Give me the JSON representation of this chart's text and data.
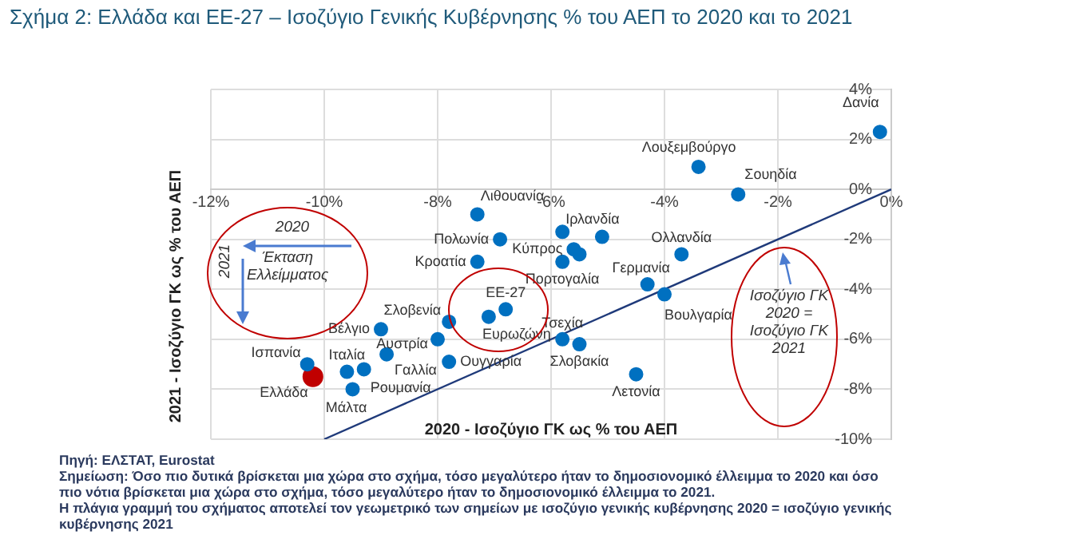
{
  "chart_data": {
    "type": "scatter",
    "title": "Σχήμα 2: Ελλάδα και ΕΕ-27 – Ισοζύγιο Γενικής Κυβέρνησης % του ΑΕΠ το 2020 και το 2021",
    "xlabel": "2020 - Ισοζύγιο ΓΚ ως % του ΑΕΠ",
    "ylabel": "2021 - Ισοζύγιο ΓΚ ως % του ΑΕΠ",
    "xlim": [
      -12,
      0
    ],
    "ylim": [
      -10,
      4
    ],
    "xticks": [
      {
        "value": -12,
        "label": "-12%"
      },
      {
        "value": -10,
        "label": "-10%"
      },
      {
        "value": -8,
        "label": "-8%"
      },
      {
        "value": -6,
        "label": "-6%"
      },
      {
        "value": -4,
        "label": "-4%"
      },
      {
        "value": -2,
        "label": "-2%"
      },
      {
        "value": 0,
        "label": "0%"
      }
    ],
    "yticks": [
      {
        "value": -10,
        "label": "-10%"
      },
      {
        "value": -8,
        "label": "-8%"
      },
      {
        "value": -6,
        "label": "-6%"
      },
      {
        "value": -4,
        "label": "-4%"
      },
      {
        "value": -2,
        "label": "-2%"
      },
      {
        "value": 0,
        "label": "0%"
      },
      {
        "value": 2,
        "label": "2%"
      },
      {
        "value": 4,
        "label": "4%"
      }
    ],
    "grid": true,
    "legend": false,
    "marker": "circle",
    "series": [
      {
        "type": "scatter",
        "color": "#0070c0",
        "x": [
          -0.2,
          -3.4,
          -2.7,
          -7.3,
          -6.9,
          -5.8,
          -5.1,
          -5.6,
          -5.5,
          -5.8,
          -7.3,
          -3.7,
          -4.3,
          -4.0,
          -6.8,
          -7.1,
          -7.8,
          -8.0,
          -9.0,
          -5.8,
          -5.5,
          -7.8,
          -4.5,
          -9.6,
          -9.3,
          -8.9,
          -9.5,
          -10.3
        ],
        "values": [
          2.3,
          0.9,
          -0.2,
          -1.0,
          -2.0,
          -1.7,
          -1.9,
          -2.4,
          -2.6,
          -2.9,
          -2.9,
          -2.6,
          -3.8,
          -4.2,
          -4.8,
          -5.1,
          -5.3,
          -6.0,
          -5.6,
          -6.0,
          -6.2,
          -6.9,
          -7.4,
          -7.3,
          -7.2,
          -6.6,
          -8.0,
          -7.0
        ]
      },
      {
        "type": "scatter",
        "color": "#c00000",
        "x": [
          -10.2
        ],
        "values": [
          -7.5
        ]
      },
      {
        "type": "line",
        "color": "#1f3a7a",
        "marker": "none",
        "x": [
          -10,
          0
        ],
        "values": [
          -10,
          0
        ]
      }
    ],
    "annotations": [
      {
        "text": "Δανία",
        "x": -0.2,
        "y": 2.3
      },
      {
        "text": "Λουξεμβούργο",
        "x": -3.4,
        "y": 0.9
      },
      {
        "text": "Σουηδία",
        "x": -2.7,
        "y": -0.2
      },
      {
        "text": "Λιθουανία",
        "x": -7.3,
        "y": -1.0
      },
      {
        "text": "Πολωνία",
        "x": -6.9,
        "y": -2.0
      },
      {
        "text": "Ιρλανδία",
        "x": -5.1,
        "y": -1.9
      },
      {
        "text": "Κύπρος",
        "x": -5.6,
        "y": -2.4
      },
      {
        "text": "Πορτογαλία",
        "x": -5.8,
        "y": -2.9
      },
      {
        "text": "Κροατία",
        "x": -7.3,
        "y": -2.9
      },
      {
        "text": "Ολλανδία",
        "x": -3.7,
        "y": -2.6
      },
      {
        "text": "Γερμανία",
        "x": -4.3,
        "y": -3.8
      },
      {
        "text": "Βουλγαρία",
        "x": -4.0,
        "y": -4.2
      },
      {
        "text": "ΕΕ-27",
        "x": -6.8,
        "y": -4.8
      },
      {
        "text": "Ευρωζώνη",
        "x": -7.1,
        "y": -5.1
      },
      {
        "text": "Σλοβενία",
        "x": -7.8,
        "y": -5.3
      },
      {
        "text": "Αυστρία",
        "x": -8.0,
        "y": -6.0
      },
      {
        "text": "Βέλγιο",
        "x": -9.0,
        "y": -5.6
      },
      {
        "text": "Τσεχία",
        "x": -5.8,
        "y": -6.0
      },
      {
        "text": "Σλοβακία",
        "x": -5.5,
        "y": -6.2
      },
      {
        "text": "Ουγγαρία",
        "x": -7.8,
        "y": -6.9
      },
      {
        "text": "Λετονία",
        "x": -4.5,
        "y": -7.4
      },
      {
        "text": "Ιταλία",
        "x": -9.6,
        "y": -7.3
      },
      {
        "text": "Ρουμανία",
        "x": -9.3,
        "y": -7.2
      },
      {
        "text": "Γαλλία",
        "x": -8.9,
        "y": -6.6
      },
      {
        "text": "Μάλτα",
        "x": -9.5,
        "y": -8.0
      },
      {
        "text": "Ισπανία",
        "x": -10.3,
        "y": -7.0
      },
      {
        "text": "Ελλάδα",
        "x": -10.2,
        "y": -7.5
      },
      "2020",
      "2021",
      "Έκταση Ελλείμματος",
      "Ισοζύγιο ΓΚ 2020 = Ισοζύγιο ΓΚ 2021",
      "Πηγή: ΕΛΣΤΑΤ, Eurostat",
      "Σημείωση: Όσο πιο δυτικά βρίσκεται μια χώρα στο σχήμα, τόσο μεγαλύτερο ήταν το δημοσιονομικό έλλειμμα το 2020 και όσο πιο νότια βρίσκεται μια χώρα στο σχήμα, τόσο μεγαλύτερο ήταν το δημοσιονομικό έλλειμμα το 2021.",
      "Η πλάγια γραμμή του σχήματος αποτελεί τον γεωμετρικό των σημείων με ισοζύγιο γενικής κυβέρνησης 2020 = ισοζύγιο γενικής κυβέρνησης 2021"
    ]
  }
}
